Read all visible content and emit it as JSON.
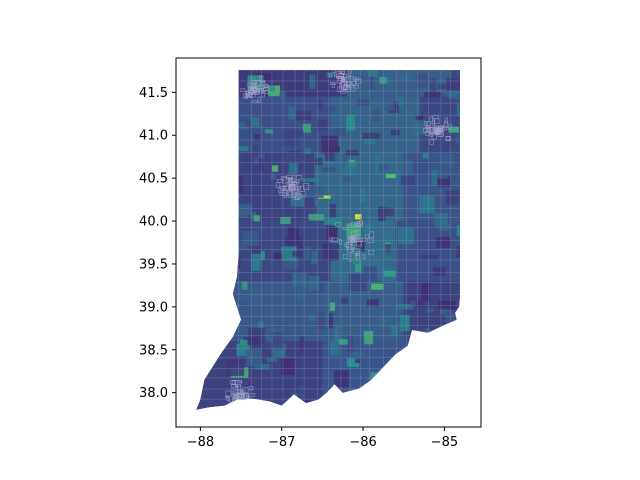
{
  "chart_data": {
    "type": "choropleth",
    "title": "",
    "xlabel": "",
    "ylabel": "",
    "xlim": [
      -88.3,
      -84.55
    ],
    "ylim": [
      37.6,
      41.9
    ],
    "grid": false,
    "legend": "none",
    "colormap": "viridis",
    "boundary_color": "#8c8cb4",
    "x_ticks": [
      {
        "value": -88,
        "label": "−88"
      },
      {
        "value": -87,
        "label": "−87"
      },
      {
        "value": -86,
        "label": "−86"
      },
      {
        "value": -85,
        "label": "−85"
      }
    ],
    "y_ticks": [
      {
        "value": 38.0,
        "label": "38.0"
      },
      {
        "value": 38.5,
        "label": "38.5"
      },
      {
        "value": 39.0,
        "label": "39.0"
      },
      {
        "value": 39.5,
        "label": "39.5"
      },
      {
        "value": 40.0,
        "label": "40.0"
      },
      {
        "value": 40.5,
        "label": "40.5"
      },
      {
        "value": 41.0,
        "label": "41.0"
      },
      {
        "value": 41.5,
        "label": "41.5"
      }
    ],
    "outline": [
      [
        -87.53,
        41.76
      ],
      [
        -84.81,
        41.76
      ],
      [
        -84.81,
        39.11
      ],
      [
        -84.82,
        39.0
      ],
      [
        -84.87,
        38.93
      ],
      [
        -84.85,
        38.85
      ],
      [
        -85.0,
        38.79
      ],
      [
        -85.2,
        38.7
      ],
      [
        -85.4,
        38.73
      ],
      [
        -85.45,
        38.55
      ],
      [
        -85.6,
        38.45
      ],
      [
        -85.75,
        38.3
      ],
      [
        -85.9,
        38.15
      ],
      [
        -86.05,
        38.05
      ],
      [
        -86.25,
        38.0
      ],
      [
        -86.35,
        38.1
      ],
      [
        -86.45,
        38.0
      ],
      [
        -86.55,
        37.92
      ],
      [
        -86.7,
        37.88
      ],
      [
        -86.85,
        37.98
      ],
      [
        -87.0,
        37.85
      ],
      [
        -87.15,
        37.9
      ],
      [
        -87.35,
        37.93
      ],
      [
        -87.55,
        37.92
      ],
      [
        -87.7,
        37.85
      ],
      [
        -87.9,
        37.83
      ],
      [
        -88.05,
        37.8
      ],
      [
        -88.0,
        37.92
      ],
      [
        -87.95,
        38.15
      ],
      [
        -87.85,
        38.3
      ],
      [
        -87.75,
        38.45
      ],
      [
        -87.6,
        38.65
      ],
      [
        -87.5,
        38.85
      ],
      [
        -87.6,
        39.15
      ],
      [
        -87.55,
        39.35
      ],
      [
        -87.53,
        39.6
      ]
    ],
    "regions": [
      {
        "x0": -87.53,
        "x1": -86.2,
        "y0": 41.45,
        "y1": 41.76,
        "value": 0.18
      },
      {
        "x0": -86.2,
        "x1": -84.81,
        "y0": 41.45,
        "y1": 41.76,
        "value": 0.3
      },
      {
        "x0": -87.53,
        "x1": -86.4,
        "y0": 40.8,
        "y1": 41.45,
        "value": 0.24
      },
      {
        "x0": -86.4,
        "x1": -85.3,
        "y0": 40.8,
        "y1": 41.45,
        "value": 0.32
      },
      {
        "x0": -85.3,
        "x1": -84.81,
        "y0": 40.8,
        "y1": 41.45,
        "value": 0.22
      },
      {
        "x0": -87.53,
        "x1": -86.6,
        "y0": 40.0,
        "y1": 40.8,
        "value": 0.2
      },
      {
        "x0": -86.6,
        "x1": -85.5,
        "y0": 40.0,
        "y1": 40.8,
        "value": 0.34
      },
      {
        "x0": -85.5,
        "x1": -84.81,
        "y0": 40.0,
        "y1": 40.8,
        "value": 0.26
      },
      {
        "x0": -87.53,
        "x1": -86.4,
        "y0": 39.3,
        "y1": 40.0,
        "value": 0.22
      },
      {
        "x0": -86.4,
        "x1": -85.6,
        "y0": 39.3,
        "y1": 40.0,
        "value": 0.36
      },
      {
        "x0": -85.6,
        "x1": -84.81,
        "y0": 39.3,
        "y1": 40.0,
        "value": 0.24
      },
      {
        "x0": -87.7,
        "x1": -86.5,
        "y0": 38.6,
        "y1": 39.3,
        "value": 0.28
      },
      {
        "x0": -86.5,
        "x1": -85.5,
        "y0": 38.6,
        "y1": 39.3,
        "value": 0.3
      },
      {
        "x0": -85.5,
        "x1": -84.81,
        "y0": 38.6,
        "y1": 39.3,
        "value": 0.2
      },
      {
        "x0": -88.1,
        "x1": -86.5,
        "y0": 37.8,
        "y1": 38.6,
        "value": 0.2
      },
      {
        "x0": -86.5,
        "x1": -85.4,
        "y0": 37.8,
        "y1": 38.6,
        "value": 0.26
      },
      {
        "x0": -86.55,
        "x1": -86.4,
        "y0": 40.26,
        "y1": 40.3,
        "value": 0.85
      },
      {
        "x0": -86.1,
        "x1": -86.02,
        "y0": 40.02,
        "y1": 40.08,
        "value": 0.95
      },
      {
        "x0": -86.12,
        "x1": -86.05,
        "y0": 39.5,
        "y1": 39.6,
        "value": 0.8
      },
      {
        "x0": -84.95,
        "x1": -84.82,
        "y0": 41.03,
        "y1": 41.1,
        "value": 0.6
      },
      {
        "x0": -85.8,
        "x1": -85.65,
        "y0": 41.6,
        "y1": 41.68,
        "value": 0.55
      },
      {
        "x0": -85.72,
        "x1": -85.6,
        "y0": 40.5,
        "y1": 40.55,
        "value": 0.7
      },
      {
        "x0": -85.75,
        "x1": -85.6,
        "y0": 39.35,
        "y1": 39.42,
        "value": 0.55
      },
      {
        "x0": -85.9,
        "x1": -85.75,
        "y0": 39.2,
        "y1": 39.27,
        "value": 0.65
      },
      {
        "x0": -86.2,
        "x1": -86.05,
        "y0": 38.3,
        "y1": 38.4,
        "value": 0.5
      },
      {
        "x0": -87.1,
        "x1": -86.95,
        "y0": 38.65,
        "y1": 38.75,
        "value": 0.5
      }
    ],
    "urban_clusters": [
      {
        "name": "",
        "lon": -86.15,
        "lat": 39.8
      },
      {
        "name": "",
        "lon": -87.35,
        "lat": 41.55
      },
      {
        "name": "",
        "lon": -86.25,
        "lat": 41.68
      },
      {
        "name": "",
        "lon": -85.1,
        "lat": 41.08
      },
      {
        "name": "",
        "lon": -87.55,
        "lat": 38.0
      },
      {
        "name": "",
        "lon": -86.9,
        "lat": 40.42
      }
    ]
  }
}
